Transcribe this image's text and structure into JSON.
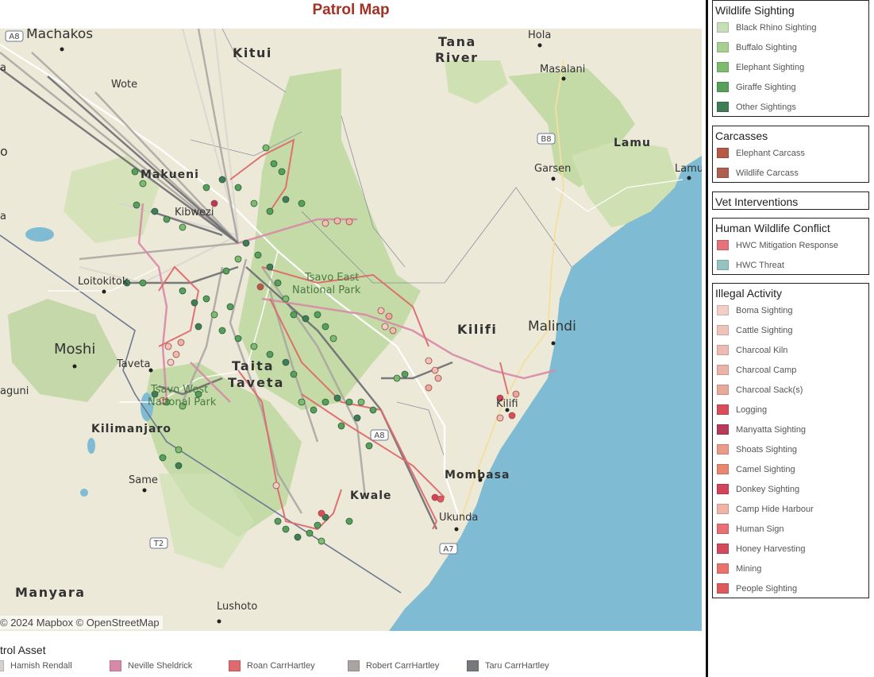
{
  "title": "Patrol Map",
  "attribution": "© 2024 Mapbox © OpenStreetMap",
  "map_labels": {
    "machakos": "Machakos",
    "kitui": "Kitui",
    "tana": "Tana",
    "river": "River",
    "hola": "Hola",
    "masalani": "Masalani",
    "wote": "Wote",
    "lamu": "Lamu",
    "lamu_town": "Lamu",
    "garsen": "Garsen",
    "makueni": "Makueni",
    "loitokitok": "Loitokitok",
    "tsavo_east_1": "Tsavo East",
    "tsavo_east_2": "National Park",
    "kilifi_region": "Kilifi",
    "malindi": "Malindi",
    "kilifi_town": "Kilifi",
    "moshi": "Moshi",
    "taveta": "Taveta",
    "taita": "Taita",
    "taveta_region": "Taveta",
    "tsavo_west_1": "Tsavo West",
    "tsavo_west_2": "National Park",
    "kilimanjaro": "Kilimanjaro",
    "mombasa": "Mombasa",
    "kwale": "Kwale",
    "ukunda": "Ukunda",
    "same": "Same",
    "manyara": "Manyara",
    "lushoto": "Lushoto",
    "arusha_partial": "aguni",
    "o_partial": "o",
    "a_partial1": "a",
    "a_partial2": "a",
    "kibwezi": "Kibwezi",
    "road_a8": "A8",
    "road_b8": "B8",
    "road_a8_south": "A8",
    "road_a7": "A7",
    "road_t2": "T2"
  },
  "legends": {
    "wildlife": {
      "title": "Wildlife Sighting",
      "items": [
        {
          "label": "Black Rhino Sighting",
          "color": "#c7dfb9"
        },
        {
          "label": "Buffalo Sighting",
          "color": "#a7cf93"
        },
        {
          "label": "Elephant Sighting",
          "color": "#7dbb6e"
        },
        {
          "label": "Giraffe Sighting",
          "color": "#56a05a"
        },
        {
          "label": "Other Sightings",
          "color": "#3f7c57"
        }
      ]
    },
    "carcasses": {
      "title": "Carcasses",
      "items": [
        {
          "label": "Elephant Carcass",
          "color": "#b45a47"
        },
        {
          "label": "Wildlife Carcass",
          "color": "#ae5f52"
        }
      ]
    },
    "vet": {
      "title": "Vet Interventions",
      "items": []
    },
    "hwc": {
      "title": "Human Wildlife Conflict",
      "items": [
        {
          "label": "HWC Mitigation Response",
          "color": "#e3737a"
        },
        {
          "label": "HWC Threat",
          "color": "#96c3c2"
        }
      ]
    },
    "illegal": {
      "title": "Illegal Activity",
      "items": [
        {
          "label": "Boma Sighting",
          "color": "#f2cfc6"
        },
        {
          "label": "Cattle Sighting",
          "color": "#f0c3b8"
        },
        {
          "label": "Charcoal Kiln",
          "color": "#edbbb1"
        },
        {
          "label": "Charcoal Camp",
          "color": "#ebb2a7"
        },
        {
          "label": "Charcoal Sack(s)",
          "color": "#e9a99a"
        },
        {
          "label": "Logging",
          "color": "#d94d5a"
        },
        {
          "label": "Manyatta Sighting",
          "color": "#b83a5a"
        },
        {
          "label": "Shoats Sighting",
          "color": "#e99a88"
        },
        {
          "label": "Camel Sighting",
          "color": "#e7876f"
        },
        {
          "label": "Donkey Sighting",
          "color": "#d2445a"
        },
        {
          "label": "Camp Hide Harbour",
          "color": "#efb4a5"
        },
        {
          "label": "Human Sign",
          "color": "#e86f73"
        },
        {
          "label": "Honey Harvesting",
          "color": "#d24a5e"
        },
        {
          "label": "Mining",
          "color": "#e9726d"
        },
        {
          "label": "People Sighting",
          "color": "#dd5a5c"
        }
      ]
    }
  },
  "patrol": {
    "title": "trol Asset",
    "items": [
      {
        "label": "Hamish Rendall",
        "color": "#d7d2d0"
      },
      {
        "label": "Neville Sheldrick",
        "color": "#d889a8"
      },
      {
        "label": "Roan CarrHartley",
        "color": "#df6a6d"
      },
      {
        "label": "Robert CarrHartley",
        "color": "#a9a3a1"
      },
      {
        "label": "Taru CarrHartley",
        "color": "#77787c"
      }
    ]
  },
  "colors": {
    "land": "#ede9d8",
    "park": "#c5dba7",
    "park_dark": "#b3d096",
    "ocean": "#7fbcd3",
    "title": "#a13225"
  }
}
